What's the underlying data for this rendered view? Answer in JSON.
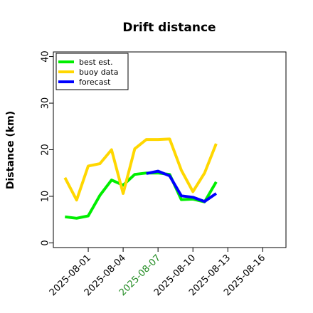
{
  "chart_data": {
    "type": "line",
    "title": "Drift distance",
    "xlabel": "",
    "ylabel": "Distance (km)",
    "ylim": [
      -1,
      41
    ],
    "xlim": [
      "2025-07-29",
      "2025-08-18"
    ],
    "yticks": [
      0,
      10,
      20,
      30,
      40
    ],
    "xticks": [
      {
        "date": "2025-08-01",
        "label": "2025-08-01",
        "color": "#000000"
      },
      {
        "date": "2025-08-04",
        "label": "2025-08-04",
        "color": "#000000"
      },
      {
        "date": "2025-08-07",
        "label": "2025-08-07",
        "color": "#228B22"
      },
      {
        "date": "2025-08-10",
        "label": "2025-08-10",
        "color": "#000000"
      },
      {
        "date": "2025-08-13",
        "label": "2025-08-13",
        "color": "#000000"
      },
      {
        "date": "2025-08-16",
        "label": "2025-08-16",
        "color": "#000000"
      }
    ],
    "grid": false,
    "legend_position": "top-left",
    "series": [
      {
        "name": "best est.",
        "color": "#00ee00",
        "points": [
          {
            "x": "2025-07-30",
            "y": 5.6
          },
          {
            "x": "2025-07-31",
            "y": 5.3
          },
          {
            "x": "2025-08-01",
            "y": 5.8
          },
          {
            "x": "2025-08-02",
            "y": 10.2
          },
          {
            "x": "2025-08-03",
            "y": 13.5
          },
          {
            "x": "2025-08-04",
            "y": 12.4
          },
          {
            "x": "2025-08-05",
            "y": 14.7
          },
          {
            "x": "2025-08-06",
            "y": 15.0
          },
          {
            "x": "2025-08-07",
            "y": 15.0
          },
          {
            "x": "2025-08-08",
            "y": 14.7
          },
          {
            "x": "2025-08-09",
            "y": 9.3
          },
          {
            "x": "2025-08-10",
            "y": 9.4
          },
          {
            "x": "2025-08-11",
            "y": 8.8
          },
          {
            "x": "2025-08-12",
            "y": 13.1
          }
        ]
      },
      {
        "name": "buoy data",
        "color": "#ffd700",
        "points": [
          {
            "x": "2025-07-30",
            "y": 14.0
          },
          {
            "x": "2025-07-31",
            "y": 9.2
          },
          {
            "x": "2025-08-01",
            "y": 16.5
          },
          {
            "x": "2025-08-02",
            "y": 17.0
          },
          {
            "x": "2025-08-03",
            "y": 20.0
          },
          {
            "x": "2025-08-04",
            "y": 10.6
          },
          {
            "x": "2025-08-05",
            "y": 20.2
          },
          {
            "x": "2025-08-06",
            "y": 22.2
          },
          {
            "x": "2025-08-07",
            "y": 22.2
          },
          {
            "x": "2025-08-08",
            "y": 22.3
          },
          {
            "x": "2025-08-09",
            "y": 15.6
          },
          {
            "x": "2025-08-10",
            "y": 11.0
          },
          {
            "x": "2025-08-11",
            "y": 15.0
          },
          {
            "x": "2025-08-12",
            "y": 21.3
          }
        ]
      },
      {
        "name": "forecast",
        "color": "#0000ff",
        "points": [
          {
            "x": "2025-08-06",
            "y": 14.9
          },
          {
            "x": "2025-08-07",
            "y": 15.4
          },
          {
            "x": "2025-08-08",
            "y": 14.4
          },
          {
            "x": "2025-08-09",
            "y": 10.1
          },
          {
            "x": "2025-08-10",
            "y": 9.8
          },
          {
            "x": "2025-08-11",
            "y": 8.9
          },
          {
            "x": "2025-08-12",
            "y": 10.6
          }
        ]
      }
    ]
  }
}
